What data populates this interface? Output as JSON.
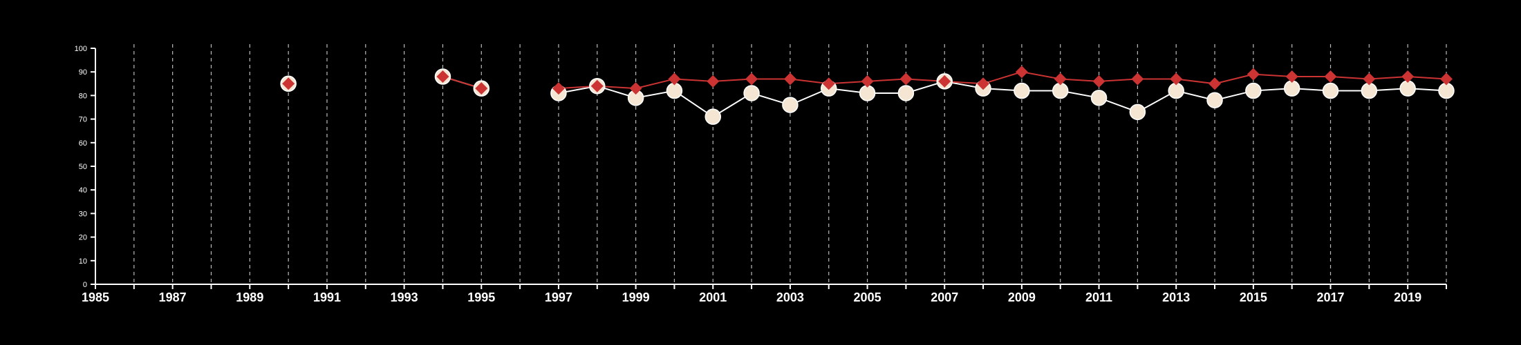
{
  "chart_data": {
    "type": "line",
    "title": "",
    "xlabel": "",
    "ylabel": "",
    "xlim": [
      1985,
      2020
    ],
    "ylim": [
      0,
      100
    ],
    "x_ticks": [
      1985,
      1986,
      1987,
      1988,
      1989,
      1990,
      1991,
      1992,
      1993,
      1994,
      1995,
      1996,
      1997,
      1998,
      1999,
      2000,
      2001,
      2002,
      2003,
      2004,
      2005,
      2006,
      2007,
      2008,
      2009,
      2010,
      2011,
      2012,
      2013,
      2014,
      2015,
      2016,
      2017,
      2018,
      2019,
      2020
    ],
    "x_tick_labels": [
      "1985",
      "1987",
      "1989",
      "1991",
      "1993",
      "1995",
      "1997",
      "1999",
      "2001",
      "2003",
      "2005",
      "2007",
      "2009",
      "2011",
      "2013",
      "2015",
      "2017",
      "2019"
    ],
    "y_ticks": [
      0,
      10,
      20,
      30,
      40,
      50,
      60,
      70,
      80,
      90,
      100
    ],
    "grid": "vertical dashed",
    "background": "#000000",
    "series": [
      {
        "marker": "circle",
        "color": "#ffffff",
        "fill": "#f5e6d3",
        "points": [
          [
            1990,
            85
          ],
          [
            1994,
            88
          ],
          [
            1995,
            83
          ],
          [
            1997,
            81
          ],
          [
            1998,
            84
          ],
          [
            1999,
            79
          ],
          [
            2000,
            82
          ],
          [
            2001,
            71
          ],
          [
            2002,
            81
          ],
          [
            2003,
            76
          ],
          [
            2004,
            83
          ],
          [
            2005,
            81
          ],
          [
            2006,
            81
          ],
          [
            2007,
            86
          ],
          [
            2008,
            83
          ],
          [
            2009,
            82
          ],
          [
            2010,
            82
          ],
          [
            2011,
            79
          ],
          [
            2012,
            73
          ],
          [
            2013,
            82
          ],
          [
            2014,
            78
          ],
          [
            2015,
            82
          ],
          [
            2016,
            83
          ],
          [
            2017,
            82
          ],
          [
            2018,
            82
          ],
          [
            2019,
            83
          ],
          [
            2020,
            82
          ]
        ]
      },
      {
        "marker": "diamond",
        "color": "#cc3333",
        "points": [
          [
            1990,
            85
          ],
          [
            1994,
            88
          ],
          [
            1995,
            83
          ],
          [
            1997,
            83
          ],
          [
            1998,
            84
          ],
          [
            1999,
            83
          ],
          [
            2000,
            87
          ],
          [
            2001,
            86
          ],
          [
            2002,
            87
          ],
          [
            2003,
            87
          ],
          [
            2004,
            85
          ],
          [
            2005,
            86
          ],
          [
            2006,
            87
          ],
          [
            2007,
            86
          ],
          [
            2008,
            85
          ],
          [
            2009,
            90
          ],
          [
            2010,
            87
          ],
          [
            2011,
            86
          ],
          [
            2012,
            87
          ],
          [
            2013,
            87
          ],
          [
            2014,
            85
          ],
          [
            2015,
            89
          ],
          [
            2016,
            88
          ],
          [
            2017,
            88
          ],
          [
            2018,
            87
          ],
          [
            2019,
            88
          ],
          [
            2020,
            87
          ]
        ]
      }
    ]
  }
}
